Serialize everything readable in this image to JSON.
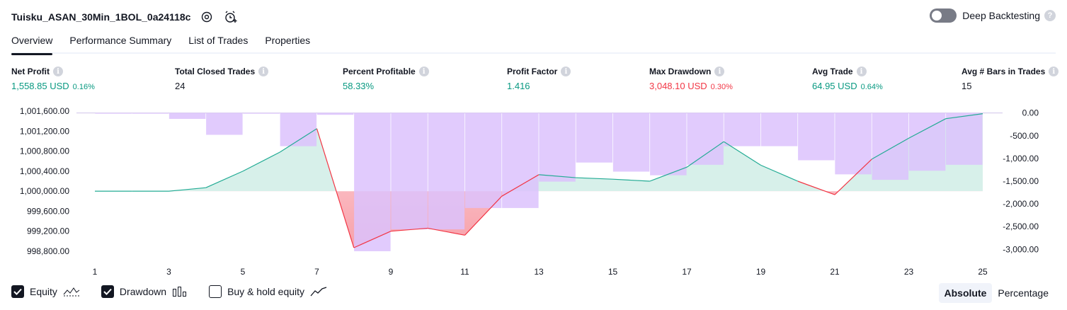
{
  "header": {
    "title": "Tuisku_ASAN_30Min_1BOL_0a24118c",
    "deep_backtesting_label": "Deep Backtesting",
    "deep_backtesting_enabled": false
  },
  "tabs": [
    {
      "label": "Overview",
      "active": true
    },
    {
      "label": "Performance Summary",
      "active": false
    },
    {
      "label": "List of Trades",
      "active": false
    },
    {
      "label": "Properties",
      "active": false
    }
  ],
  "metrics": {
    "net_profit": {
      "label": "Net Profit",
      "value": "1,558.85 USD",
      "pct": "0.16%"
    },
    "total_closed_trades": {
      "label": "Total Closed Trades",
      "value": "24"
    },
    "percent_profitable": {
      "label": "Percent Profitable",
      "value": "58.33%"
    },
    "profit_factor": {
      "label": "Profit Factor",
      "value": "1.416"
    },
    "max_drawdown": {
      "label": "Max Drawdown",
      "value": "3,048.10 USD",
      "pct": "0.30%"
    },
    "avg_trade": {
      "label": "Avg Trade",
      "value": "64.95 USD",
      "pct": "0.64%"
    },
    "avg_bars": {
      "label": "Avg # Bars in Trades",
      "value": "15"
    }
  },
  "colors": {
    "profit": "#089981",
    "loss": "#f23645",
    "drawdown_bar": "#dcc2fd",
    "equity_fill": "#d7f0ea",
    "equity_line": "#22ab94"
  },
  "chart_data": {
    "type": "area",
    "x": [
      1,
      2,
      3,
      4,
      5,
      6,
      7,
      8,
      9,
      10,
      11,
      12,
      13,
      14,
      15,
      16,
      17,
      18,
      19,
      20,
      21,
      22,
      23,
      24,
      25
    ],
    "x_ticks": [
      "1",
      "3",
      "5",
      "7",
      "9",
      "11",
      "13",
      "15",
      "17",
      "19",
      "21",
      "23",
      "25"
    ],
    "left_axis": {
      "ticks": [
        "1,001,600.00",
        "1,001,200.00",
        "1,000,800.00",
        "1,000,400.00",
        "1,000,000.00",
        "999,600.00",
        "999,200.00",
        "998,800.00"
      ],
      "range": [
        998700,
        1001700
      ]
    },
    "right_axis": {
      "ticks": [
        "0.00",
        "-500.00",
        "-1,000.00",
        "-1,500.00",
        "-2,000.00",
        "-2,500.00",
        "-3,000.00"
      ],
      "range": [
        -3150,
        150
      ]
    },
    "baseline": 1000000,
    "series": [
      {
        "name": "Equity",
        "axis": "left",
        "values": [
          1000000,
          1000000,
          1000000,
          1000070,
          1000400,
          1000780,
          1001250,
          998870,
          999200,
          999260,
          999120,
          999900,
          1000330,
          1000270,
          1000240,
          1000200,
          1000480,
          1000990,
          1000520,
          1000200,
          999930,
          1000640,
          1001060,
          1001450,
          1001550
        ]
      },
      {
        "name": "Drawdown",
        "axis": "right",
        "values": [
          -10,
          -10,
          -130,
          -480,
          -10,
          -730,
          -40,
          -3040,
          -2560,
          -2560,
          -2090,
          -2090,
          -1510,
          -1090,
          -1290,
          -1370,
          -1140,
          -730,
          -730,
          -1040,
          -1350,
          -1470,
          -1270,
          -1140,
          0
        ]
      }
    ]
  },
  "legend": [
    {
      "label": "Equity",
      "checked": true
    },
    {
      "label": "Drawdown",
      "checked": true
    },
    {
      "label": "Buy & hold equity",
      "checked": false
    }
  ],
  "mode": {
    "absolute_label": "Absolute",
    "percentage_label": "Percentage",
    "selected": "Absolute"
  }
}
